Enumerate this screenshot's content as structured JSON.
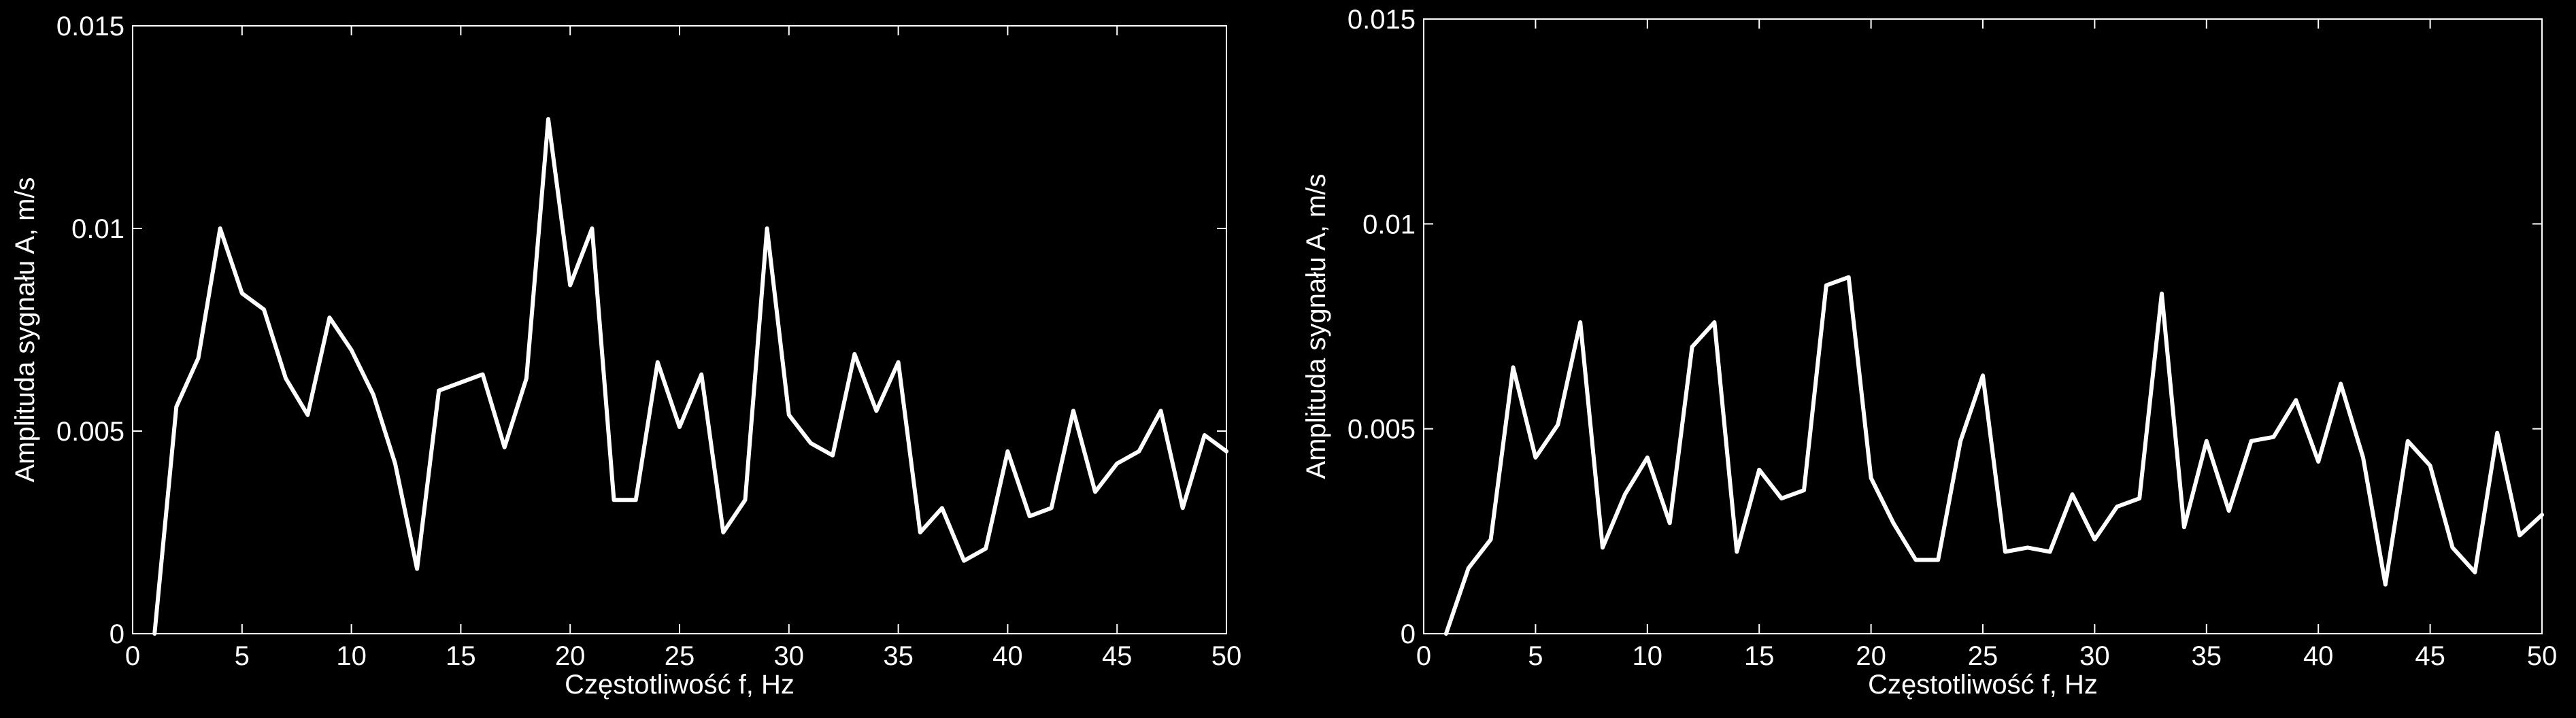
{
  "chart_data": [
    {
      "type": "line",
      "xlabel": "Częstotliwość f, Hz",
      "ylabel": "Amplituda sygnału A, m/s",
      "xlim": [
        0,
        50
      ],
      "ylim": [
        0,
        0.015
      ],
      "xticks": [
        0,
        5,
        10,
        15,
        20,
        25,
        30,
        35,
        40,
        45,
        50
      ],
      "xtick_labels": [
        "0",
        "5",
        "10",
        "15",
        "20",
        "25",
        "30",
        "35",
        "40",
        "45",
        "50"
      ],
      "yticks": [
        0,
        0.005,
        0.01,
        0.015
      ],
      "ytick_labels": [
        "0",
        "0.005",
        "0.01",
        "0.015"
      ],
      "grid": false,
      "series": [
        {
          "x": [
            1,
            2,
            3,
            4,
            5,
            6,
            7,
            8,
            9,
            10,
            11,
            12,
            13,
            14,
            15,
            16,
            17,
            18,
            19,
            20,
            21,
            22,
            23,
            24,
            25,
            26,
            27,
            28,
            29,
            30,
            31,
            32,
            33,
            34,
            35,
            36,
            37,
            38,
            39,
            40,
            41,
            42,
            43,
            44,
            45,
            46,
            47,
            48,
            49,
            50
          ],
          "y": [
            0,
            0.0056,
            0.0068,
            0.01,
            0.0084,
            0.008,
            0.0063,
            0.0054,
            0.0078,
            0.007,
            0.0059,
            0.0042,
            0.0016,
            0.006,
            0.0062,
            0.0064,
            0.0046,
            0.0063,
            0.0127,
            0.0086,
            0.01,
            0.0033,
            0.0033,
            0.0067,
            0.0051,
            0.0064,
            0.0025,
            0.0033,
            0.01,
            0.0054,
            0.0047,
            0.0044,
            0.0069,
            0.0055,
            0.0067,
            0.0025,
            0.0031,
            0.0018,
            0.0021,
            0.0045,
            0.0029,
            0.0031,
            0.0055,
            0.0035,
            0.0042,
            0.0045,
            0.0055,
            0.0031,
            0.0049,
            0.0045
          ]
        }
      ]
    },
    {
      "type": "line",
      "xlabel": "Częstotliwość f, Hz",
      "ylabel": "Amplituda sygnału A, m/s",
      "xlim": [
        0,
        50
      ],
      "ylim": [
        0,
        0.015
      ],
      "xticks": [
        0,
        5,
        10,
        15,
        20,
        25,
        30,
        35,
        40,
        45,
        50
      ],
      "xtick_labels": [
        "0",
        "5",
        "10",
        "15",
        "20",
        "25",
        "30",
        "35",
        "40",
        "45",
        "50"
      ],
      "yticks": [
        0,
        0.005,
        0.01,
        0.015
      ],
      "ytick_labels": [
        "0",
        "0.005",
        "0.01",
        "0.015"
      ],
      "grid": false,
      "series": [
        {
          "x": [
            1,
            2,
            3,
            4,
            5,
            6,
            7,
            8,
            9,
            10,
            11,
            12,
            13,
            14,
            15,
            16,
            17,
            18,
            19,
            20,
            21,
            22,
            23,
            24,
            25,
            26,
            27,
            28,
            29,
            30,
            31,
            32,
            33,
            34,
            35,
            36,
            37,
            38,
            39,
            40,
            41,
            42,
            43,
            44,
            45,
            46,
            47,
            48,
            49,
            50
          ],
          "y": [
            0,
            0.0016,
            0.0023,
            0.0065,
            0.0043,
            0.0051,
            0.0076,
            0.0021,
            0.0034,
            0.0043,
            0.0027,
            0.007,
            0.0076,
            0.002,
            0.004,
            0.0033,
            0.0035,
            0.0085,
            0.0087,
            0.0038,
            0.0027,
            0.0018,
            0.0018,
            0.0047,
            0.0063,
            0.002,
            0.0021,
            0.002,
            0.0034,
            0.0023,
            0.0031,
            0.0033,
            0.0083,
            0.0026,
            0.0047,
            0.003,
            0.0047,
            0.0048,
            0.0057,
            0.0042,
            0.0061,
            0.0043,
            0.0012,
            0.0047,
            0.0041,
            0.0021,
            0.0015,
            0.0049,
            0.0024,
            0.0029
          ]
        }
      ]
    }
  ],
  "style": {
    "background": "#000000",
    "foreground": "#ffffff",
    "line_color": "#ffffff"
  }
}
